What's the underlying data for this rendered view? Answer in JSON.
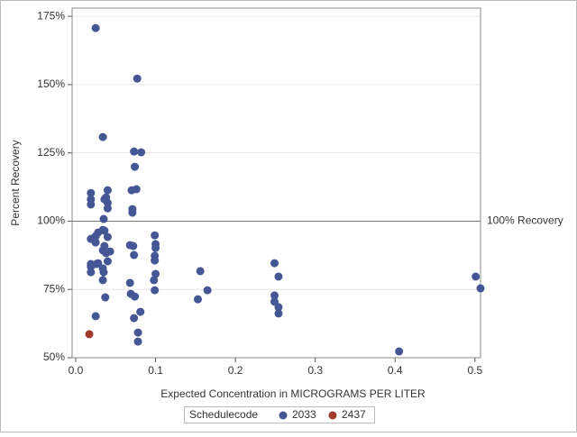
{
  "chart_data": {
    "type": "scatter",
    "xlabel": "Expected Concentration in MICROGRAMS PER LITER",
    "ylabel": "Percent Recovery",
    "xlim": [
      -0.0045,
      0.507
    ],
    "ylim": [
      50,
      178
    ],
    "xticks": [
      {
        "value": 0,
        "label": "0.0"
      },
      0.1,
      0.2,
      0.3,
      0.4,
      0.5
    ],
    "yticks": [
      {
        "value": 50,
        "label": "50%"
      },
      {
        "value": 75,
        "label": "75%"
      },
      {
        "value": 100,
        "label": "100%"
      },
      {
        "value": 125,
        "label": "125%"
      },
      {
        "value": 150,
        "label": "150%"
      },
      {
        "value": 175,
        "label": "175%"
      }
    ],
    "grid": true,
    "reference_line": {
      "value": 100,
      "label": "100% Recovery"
    },
    "legend_title": "Schedulecode",
    "series": [
      {
        "name": "2033",
        "color": "#445694",
        "x": [
          0.025,
          0.077,
          0.034,
          0.073,
          0.082,
          0.074,
          0.07,
          0.076,
          0.019,
          0.019,
          0.019,
          0.04,
          0.036,
          0.038,
          0.04,
          0.04,
          0.071,
          0.071,
          0.035,
          0.019,
          0.025,
          0.028,
          0.034,
          0.036,
          0.04,
          0.025,
          0.068,
          0.072,
          0.036,
          0.034,
          0.038,
          0.043,
          0.073,
          0.099,
          0.1,
          0.1,
          0.099,
          0.099,
          0.04,
          0.019,
          0.019,
          0.026,
          0.028,
          0.034,
          0.035,
          0.019,
          0.034,
          0.1,
          0.098,
          0.099,
          0.068,
          0.069,
          0.074,
          0.037,
          0.156,
          0.165,
          0.153,
          0.249,
          0.254,
          0.249,
          0.249,
          0.254,
          0.254,
          0.081,
          0.025,
          0.073,
          0.078,
          0.078,
          0.405,
          0.501,
          0.507
        ],
        "values": [
          170.7,
          152.2,
          130.8,
          125.5,
          125.2,
          119.9,
          111.3,
          111.7,
          110.3,
          108.0,
          106.1,
          111.3,
          108.0,
          108.7,
          106.7,
          104.7,
          104.4,
          103.1,
          100.8,
          93.5,
          94.5,
          95.8,
          96.8,
          96.5,
          94.2,
          92.2,
          91.2,
          90.9,
          90.9,
          89.3,
          88.3,
          88.9,
          87.6,
          94.8,
          91.6,
          90.2,
          87.3,
          85.6,
          85.3,
          84.3,
          83.3,
          84.3,
          84.6,
          82.7,
          81.3,
          81.3,
          78.4,
          80.7,
          78.4,
          74.7,
          77.4,
          73.4,
          72.4,
          72.1,
          81.7,
          74.7,
          71.4,
          84.6,
          79.7,
          72.8,
          70.5,
          68.5,
          66.2,
          66.8,
          65.2,
          64.5,
          59.2,
          55.9,
          52.3,
          79.7,
          75.4
        ]
      },
      {
        "name": "2437",
        "color": "#a23a2e",
        "x": [
          0.017
        ],
        "values": [
          58.6
        ]
      }
    ]
  }
}
